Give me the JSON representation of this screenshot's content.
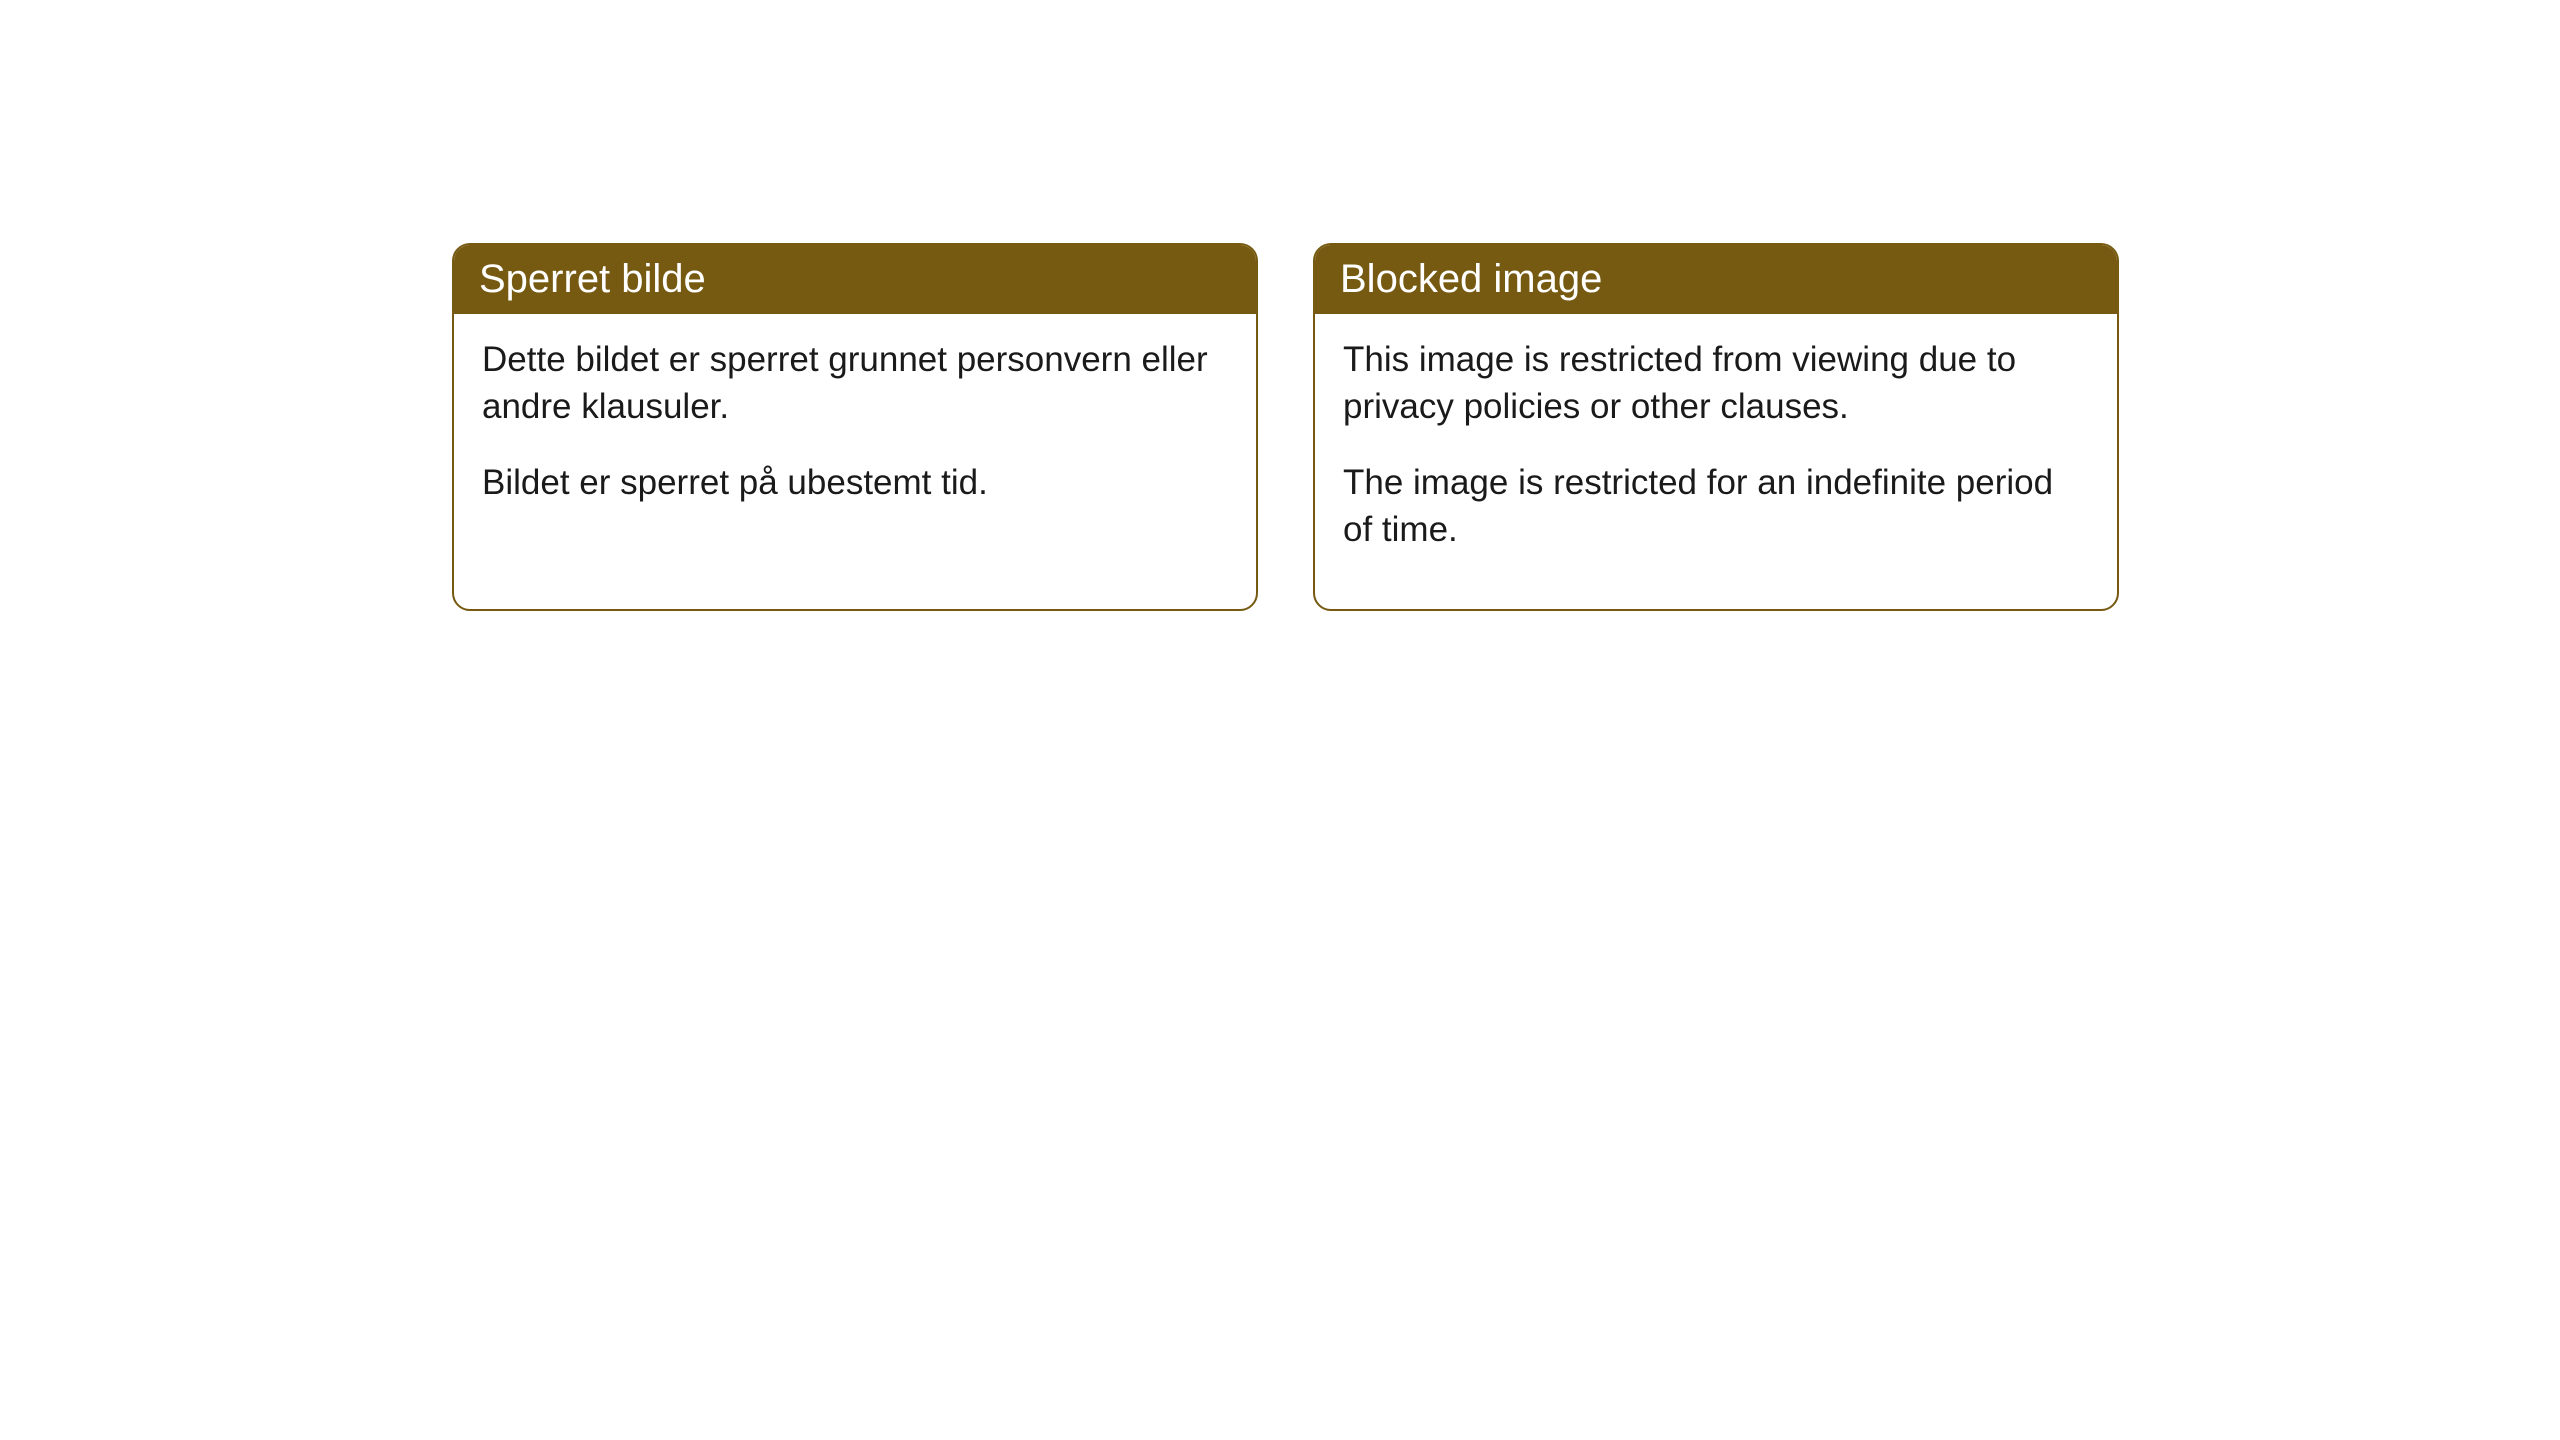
{
  "cards": [
    {
      "title": "Sperret bilde",
      "paragraph1": "Dette bildet er sperret grunnet personvern eller andre klausuler.",
      "paragraph2": "Bildet er sperret på ubestemt tid."
    },
    {
      "title": "Blocked image",
      "paragraph1": "This image is restricted from viewing due to privacy policies or other clauses.",
      "paragraph2": "The image is restricted for an indefinite period of time."
    }
  ],
  "styling": {
    "header_bg_color": "#775a12",
    "header_text_color": "#ffffff",
    "border_color": "#775a12",
    "body_text_color": "#1a1a1a",
    "background_color": "#ffffff",
    "border_radius": 18,
    "header_fontsize": 40,
    "body_fontsize": 35
  }
}
